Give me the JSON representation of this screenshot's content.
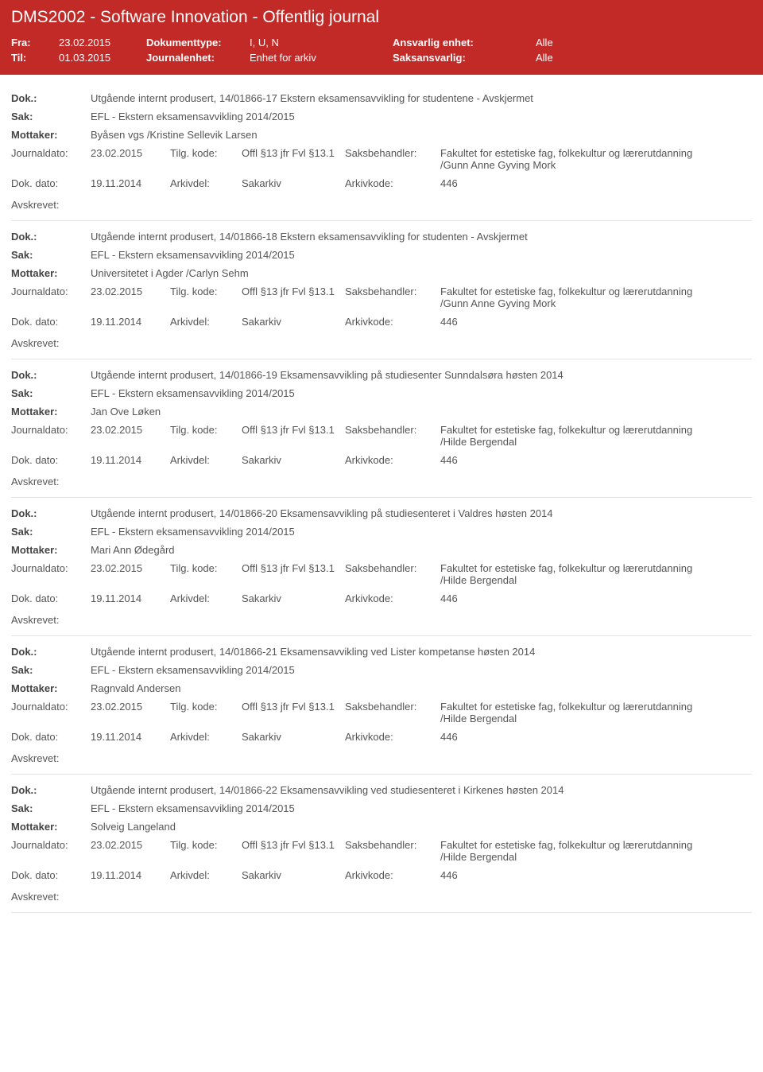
{
  "header": {
    "title": "DMS2002 - Software Innovation - Offentlig journal",
    "fra_label": "Fra:",
    "fra_value": "23.02.2015",
    "til_label": "Til:",
    "til_value": "01.03.2015",
    "doktype_label": "Dokumenttype:",
    "doktype_value": "I, U, N",
    "journalenhet_label": "Journalenhet:",
    "journalenhet_value": "Enhet for arkiv",
    "ansvarlig_label": "Ansvarlig enhet:",
    "ansvarlig_value": "Alle",
    "saksansvarlig_label": "Saksansvarlig:",
    "saksansvarlig_value": "Alle"
  },
  "labels": {
    "dok": "Dok.:",
    "sak": "Sak:",
    "mottaker": "Mottaker:",
    "journaldato": "Journaldato:",
    "tilgkode": "Tilg. kode:",
    "saksbehandler": "Saksbehandler:",
    "dokdato": "Dok. dato:",
    "arkivdel": "Arkivdel:",
    "arkivkode": "Arkivkode:",
    "avskrevet": "Avskrevet:"
  },
  "common": {
    "sak_text": "EFL - Ekstern eksamensavvikling 2014/2015",
    "journaldato_val": "23.02.2015",
    "tilgkode_val": "Offl §13 jfr Fvl §13.1",
    "dokdato_val": "19.11.2014",
    "arkivdel_val": "Sakarkiv",
    "arkivkode_val": "446",
    "fakultet": "Fakultet for estetiske fag, folkekultur og lærerutdanning"
  },
  "entries": [
    {
      "dok": "Utgående internt produsert, 14/01866-17 Ekstern eksamensavvikling for studentene - Avskjermet",
      "mottaker": "Byåsen vgs /Kristine Sellevik Larsen",
      "handler": "/Gunn Anne Gyving Mork"
    },
    {
      "dok": "Utgående internt produsert, 14/01866-18 Ekstern eksamensavvikling for studenten - Avskjermet",
      "mottaker": "Universitetet i Agder /Carlyn Sehm",
      "handler": "/Gunn Anne Gyving Mork"
    },
    {
      "dok": "Utgående internt produsert, 14/01866-19 Eksamensavvikling på studiesenter Sunndalsøra høsten 2014",
      "mottaker": "Jan Ove Løken",
      "handler": "/Hilde Bergendal"
    },
    {
      "dok": "Utgående internt produsert, 14/01866-20 Eksamensavvikling på studiesenteret i Valdres høsten 2014",
      "mottaker": "Mari Ann Ødegård",
      "handler": "/Hilde Bergendal"
    },
    {
      "dok": "Utgående internt produsert, 14/01866-21 Eksamensavvikling ved Lister kompetanse høsten 2014",
      "mottaker": "Ragnvald Andersen",
      "handler": "/Hilde Bergendal"
    },
    {
      "dok": "Utgående internt produsert, 14/01866-22 Eksamensavvikling ved studiesenteret i Kirkenes høsten 2014",
      "mottaker": "Solveig Langeland",
      "handler": "/Hilde Bergendal"
    }
  ]
}
